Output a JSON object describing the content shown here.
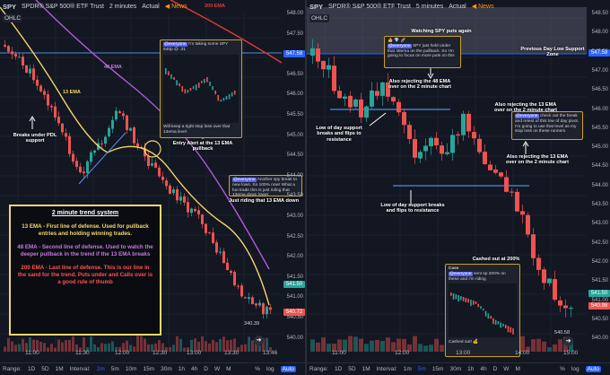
{
  "left": {
    "symbol": "SPY",
    "title": "SPDR® S&P 500® ETF Trust",
    "interval": "2 minutes",
    "exchange": "Actual",
    "news": "News",
    "ohlc": "OHLC",
    "price_ticks": [
      "548.00",
      "547.50",
      "547.00",
      "546.50",
      "546.00",
      "545.50",
      "545.00",
      "544.50",
      "544.00",
      "543.50",
      "543.00",
      "542.50",
      "542.00",
      "541.50",
      "541.00",
      "540.50",
      "540.00"
    ],
    "price_tags": {
      "a": "547.58",
      "b": "541.50",
      "c": "540.72"
    },
    "time_ticks": [
      "11:00",
      "11:30",
      "12:00",
      "12:30",
      "13:00",
      "13:30",
      "13:46"
    ],
    "ema_labels": {
      "e200": "200 EMA",
      "e48": "48 EMA",
      "e13": "13 EMA"
    },
    "annotations": {
      "pdl": "Breaks under PDL support",
      "entry": "Entry Alert at the 13 EMA pullback",
      "riding": "Just riding that 13 EMA down"
    },
    "trend_box": {
      "title": "2 minute trend system",
      "p13": "13 EMA - First line of defense. Used for pullback entries and holding winning trades.",
      "p48": "48 EMA - Second line of defense. Used to watch the deeper pullback in the trend if the 13 EMA breaks",
      "p200": "200 EMA - Last line of defense. This is our line in the sand for the trend. Puts under and Calls over is a good rule of thumb"
    },
    "msg1": {
      "mention": "@everyone",
      "text": "I'm taking some SPY 540p @ .31",
      "foot": "Will keep a tight stop loss over that 13ema level"
    },
    "msg2": {
      "mention": "@everyone",
      "text": "Another spy break to new lows. So 100% now! What a fun trade this is just riding that 13ema down lower"
    },
    "bottom": [
      "Range:",
      "1D",
      "5D",
      "1M",
      "Interval:",
      "2m",
      "5m",
      "10m",
      "15m",
      "30m",
      "1h",
      "4h",
      "D",
      "W",
      "M"
    ],
    "bottom_right": [
      "%",
      "log",
      "Auto"
    ],
    "watermark": "340.39",
    "colors": {
      "up": "#26a69a",
      "down": "#ef5350",
      "ema13": "#f5d76e",
      "ema48": "#b05cd6",
      "ema200": "#e53935",
      "support": "#4a90e2"
    }
  },
  "right": {
    "symbol": "SPY",
    "title": "SPDR® S&P 500® ETF Trust",
    "interval": "5 minutes",
    "exchange": "Actual",
    "news": "News",
    "ohlc": "OHLC",
    "price_ticks": [
      "548.50",
      "548.00",
      "547.50",
      "547.00",
      "546.50",
      "546.00",
      "545.50",
      "545.00",
      "544.50",
      "544.00",
      "543.50",
      "543.00",
      "542.50",
      "542.00",
      "541.50",
      "541.00",
      "540.50",
      "540.00"
    ],
    "price_tags": {
      "a": "547.58",
      "b": "541.50",
      "c": "540.98"
    },
    "time_ticks": [
      "11:00",
      "12:00",
      "13:00",
      "14:00",
      "15:00"
    ],
    "annotations": {
      "watching": "Watching SPY puts again",
      "pdl_zone": "Previous Day Low Support Zone",
      "rej48": "Also rejecting the 48 EMA over on the 2 minute chart",
      "lod1": "Low of day support breaks and flips to resistance",
      "rej13": "Also rejecting the 13 EMA over on the 2 minute chart",
      "lod2": "Low of day support breaks and flips to resistance",
      "cashed": "Cashed out at 200%"
    },
    "msg1": {
      "mention": "@everyone",
      "text": "SPY just held under that 48ema on the pullback. So I'm going to focus on more puts on this"
    },
    "msg2": {
      "mention": "@everyone",
      "text": "check out the break and retest of this low of day pivot. I'm going to use that level as my stop loss on these runners"
    },
    "msg3": {
      "user": "Cass",
      "mention": "@everyone",
      "text": "sent sp 200% on these and I'm riding",
      "foot": "Cashed out! 💰"
    },
    "bottom": [
      "Range:",
      "1D",
      "5D",
      "1M",
      "Interval:",
      "1m",
      "5m",
      "15m",
      "30m",
      "1h",
      "4h",
      "D",
      "W",
      "M"
    ],
    "bottom_right": [
      "%",
      "log",
      "Auto"
    ],
    "watermark": "540.58"
  }
}
